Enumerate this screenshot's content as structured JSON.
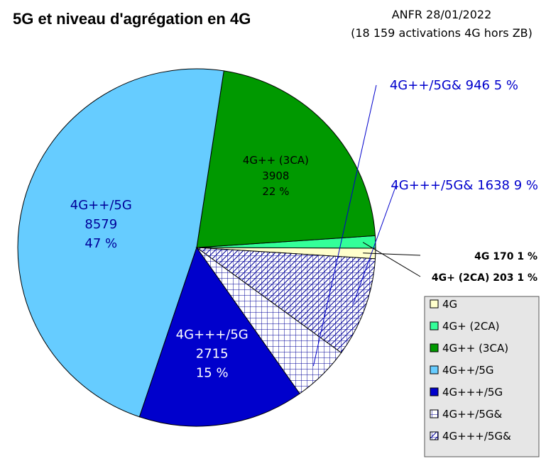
{
  "chart_data": {
    "type": "pie",
    "title": "5G et niveau d'agrégation en 4G",
    "subtitle_lines": [
      "ANFR 28/01/2022",
      "(18 159 activations 4G hors ZB)"
    ],
    "colors": {
      "4g": "#ffffcc",
      "4g_plus": "#33ff99",
      "4g_plusplus": "#009900",
      "4g_plusplus_5g": "#66ccff",
      "4g_plusplusplus_5g": "#0000cc",
      "hatch_line": "#000099",
      "label_dark_blue": "#000099",
      "label_blue": "#0000cc"
    },
    "slices": [
      {
        "legend": "4G",
        "value": 170,
        "label_lines": [
          "4G 170 1 %"
        ],
        "fill": "4g"
      },
      {
        "legend": "4G+ (2CA)",
        "value": 203,
        "label_lines": [
          "4G+ (2CA) 203 1 %"
        ],
        "fill": "4g_plus"
      },
      {
        "legend": "4G++ (3CA)",
        "value": 3908,
        "label_lines": [
          "4G++ (3CA)",
          "3908",
          "22 %"
        ],
        "fill": "4g_plusplus"
      },
      {
        "legend": "4G++/5G",
        "value": 8579,
        "label_lines": [
          "4G++/5G",
          "8579",
          "47 %"
        ],
        "fill": "4g_plusplus_5g"
      },
      {
        "legend": "4G+++/5G",
        "value": 2715,
        "label_lines": [
          "4G+++/5G",
          "2715",
          "15 %"
        ],
        "fill": "4g_plusplusplus_5g"
      },
      {
        "legend": "4G++/5G&",
        "value": 946,
        "label_lines": [
          "4G++/5G& 946 5 %"
        ],
        "fill": "hatch-grid"
      },
      {
        "legend": "4G+++/5G&",
        "value": 1638,
        "label_lines": [
          "4G+++/5G& 1638 9 %"
        ],
        "fill": "hatch-crossgrid"
      }
    ]
  }
}
